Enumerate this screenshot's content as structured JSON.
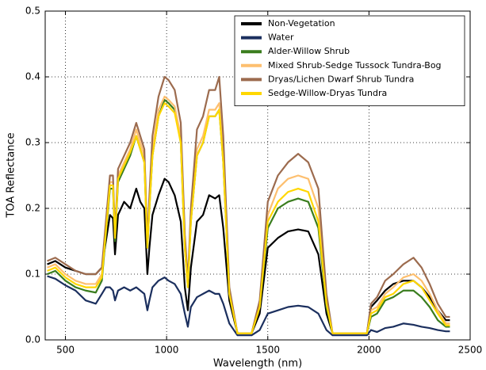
{
  "chart_data": {
    "type": "line",
    "xlabel": "Wavelength (nm)",
    "ylabel": "TOA Reflectance",
    "xlim": [
      400,
      2500
    ],
    "xticks": [
      500,
      1000,
      1500,
      2000,
      2500
    ],
    "ylim": [
      0,
      0.5
    ],
    "yticks": [
      {
        "value": 0,
        "label": "0.0"
      },
      0.1,
      0.2,
      0.3,
      0.4,
      0.5
    ],
    "grid": true,
    "legend": "upper right",
    "x": [
      410,
      450,
      500,
      550,
      600,
      650,
      680,
      700,
      720,
      735,
      745,
      760,
      790,
      820,
      850,
      870,
      890,
      905,
      915,
      930,
      960,
      990,
      1010,
      1040,
      1070,
      1090,
      1105,
      1120,
      1150,
      1180,
      1210,
      1240,
      1260,
      1280,
      1310,
      1350,
      1420,
      1460,
      1500,
      1550,
      1600,
      1650,
      1700,
      1750,
      1790,
      1820,
      1900,
      1990,
      2010,
      2040,
      2080,
      2120,
      2170,
      2220,
      2260,
      2300,
      2340,
      2380,
      2400
    ],
    "series": [
      {
        "name": "Non-Vegetation",
        "color": "#000000",
        "values": [
          0.115,
          0.12,
          0.11,
          0.105,
          0.1,
          0.1,
          0.11,
          0.15,
          0.19,
          0.185,
          0.13,
          0.19,
          0.21,
          0.2,
          0.23,
          0.21,
          0.2,
          0.1,
          0.14,
          0.19,
          0.22,
          0.245,
          0.24,
          0.22,
          0.18,
          0.08,
          0.045,
          0.11,
          0.18,
          0.19,
          0.22,
          0.215,
          0.22,
          0.17,
          0.06,
          0.01,
          0.01,
          0.04,
          0.14,
          0.155,
          0.165,
          0.168,
          0.165,
          0.13,
          0.04,
          0.01,
          0.01,
          0.01,
          0.05,
          0.06,
          0.075,
          0.085,
          0.09,
          0.09,
          0.08,
          0.065,
          0.045,
          0.03,
          0.03
        ]
      },
      {
        "name": "Water",
        "color": "#1b2f5e",
        "values": [
          0.097,
          0.093,
          0.083,
          0.075,
          0.06,
          0.055,
          0.07,
          0.08,
          0.08,
          0.075,
          0.06,
          0.075,
          0.08,
          0.075,
          0.08,
          0.075,
          0.07,
          0.045,
          0.06,
          0.08,
          0.09,
          0.095,
          0.09,
          0.085,
          0.07,
          0.04,
          0.02,
          0.05,
          0.065,
          0.07,
          0.075,
          0.07,
          0.07,
          0.055,
          0.025,
          0.007,
          0.007,
          0.015,
          0.04,
          0.045,
          0.05,
          0.052,
          0.05,
          0.04,
          0.015,
          0.007,
          0.007,
          0.007,
          0.015,
          0.012,
          0.018,
          0.02,
          0.025,
          0.023,
          0.02,
          0.018,
          0.015,
          0.013,
          0.013
        ]
      },
      {
        "name": "Alder-Willow Shrub",
        "color": "#3a7d1e",
        "values": [
          0.1,
          0.105,
          0.09,
          0.08,
          0.075,
          0.072,
          0.09,
          0.16,
          0.23,
          0.23,
          0.15,
          0.24,
          0.26,
          0.28,
          0.31,
          0.29,
          0.27,
          0.14,
          0.2,
          0.28,
          0.34,
          0.365,
          0.36,
          0.35,
          0.3,
          0.14,
          0.08,
          0.18,
          0.28,
          0.3,
          0.34,
          0.34,
          0.35,
          0.27,
          0.07,
          0.01,
          0.01,
          0.05,
          0.17,
          0.2,
          0.21,
          0.215,
          0.21,
          0.17,
          0.05,
          0.01,
          0.01,
          0.01,
          0.035,
          0.04,
          0.06,
          0.065,
          0.075,
          0.075,
          0.065,
          0.05,
          0.03,
          0.02,
          0.02
        ]
      },
      {
        "name": "Mixed Shrub-Sedge Tussock Tundra-Bog",
        "color": "#fdbf6f",
        "values": [
          0.11,
          0.115,
          0.1,
          0.09,
          0.085,
          0.085,
          0.1,
          0.17,
          0.24,
          0.24,
          0.16,
          0.25,
          0.27,
          0.29,
          0.32,
          0.3,
          0.28,
          0.15,
          0.21,
          0.29,
          0.35,
          0.37,
          0.365,
          0.355,
          0.31,
          0.15,
          0.085,
          0.19,
          0.29,
          0.31,
          0.35,
          0.35,
          0.36,
          0.28,
          0.075,
          0.01,
          0.01,
          0.055,
          0.19,
          0.23,
          0.245,
          0.25,
          0.245,
          0.2,
          0.06,
          0.01,
          0.01,
          0.01,
          0.045,
          0.05,
          0.07,
          0.08,
          0.095,
          0.1,
          0.09,
          0.07,
          0.045,
          0.025,
          0.025
        ]
      },
      {
        "name": "Dryas/Lichen Dwarf Shrub Tundra",
        "color": "#9c6b4e",
        "values": [
          0.12,
          0.125,
          0.115,
          0.105,
          0.1,
          0.1,
          0.11,
          0.18,
          0.25,
          0.25,
          0.16,
          0.26,
          0.28,
          0.3,
          0.33,
          0.31,
          0.29,
          0.15,
          0.22,
          0.31,
          0.37,
          0.4,
          0.395,
          0.38,
          0.33,
          0.16,
          0.09,
          0.2,
          0.32,
          0.34,
          0.38,
          0.38,
          0.4,
          0.31,
          0.08,
          0.01,
          0.01,
          0.06,
          0.21,
          0.25,
          0.27,
          0.283,
          0.27,
          0.23,
          0.07,
          0.01,
          0.01,
          0.01,
          0.055,
          0.065,
          0.09,
          0.1,
          0.115,
          0.125,
          0.11,
          0.085,
          0.055,
          0.035,
          0.035
        ]
      },
      {
        "name": "Sedge-Willow-Dryas Tundra",
        "color": "#ffd700",
        "values": [
          0.105,
          0.11,
          0.095,
          0.085,
          0.08,
          0.08,
          0.095,
          0.165,
          0.235,
          0.235,
          0.155,
          0.245,
          0.265,
          0.285,
          0.31,
          0.29,
          0.27,
          0.14,
          0.2,
          0.28,
          0.34,
          0.36,
          0.355,
          0.345,
          0.3,
          0.14,
          0.08,
          0.18,
          0.28,
          0.3,
          0.34,
          0.34,
          0.35,
          0.27,
          0.07,
          0.01,
          0.01,
          0.05,
          0.18,
          0.21,
          0.225,
          0.23,
          0.225,
          0.18,
          0.055,
          0.01,
          0.01,
          0.01,
          0.04,
          0.045,
          0.065,
          0.07,
          0.085,
          0.09,
          0.08,
          0.06,
          0.04,
          0.022,
          0.022
        ]
      }
    ]
  }
}
